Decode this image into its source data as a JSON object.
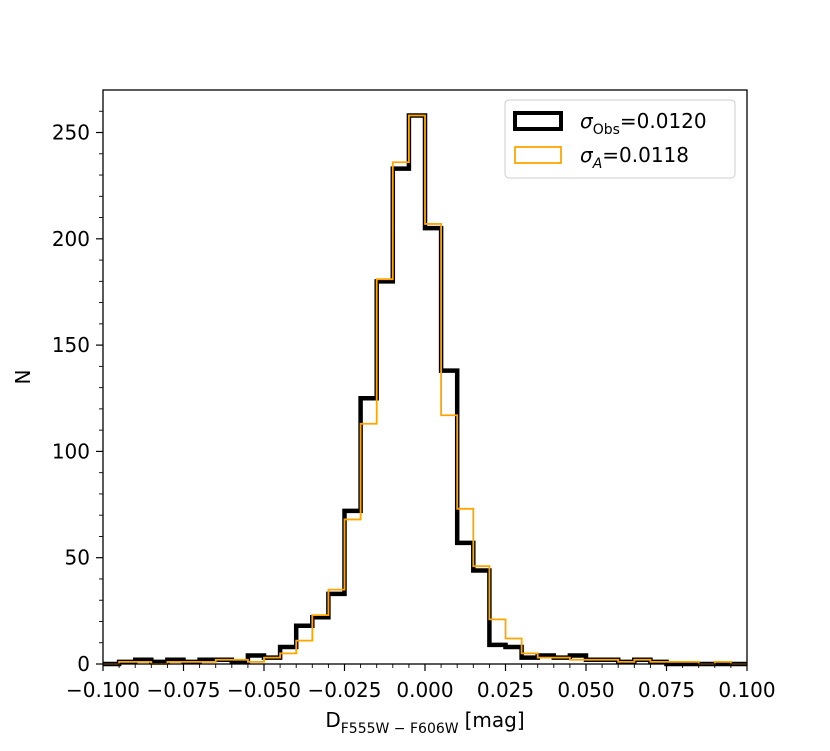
{
  "chart_data": {
    "type": "histogram",
    "xlabel": {
      "main": "D",
      "sub": "F555W − F606W",
      "unit": "[mag]"
    },
    "ylabel": "N",
    "xlim": [
      -0.1,
      0.1
    ],
    "ylim": [
      0,
      270
    ],
    "x_ticks": [
      -0.1,
      -0.075,
      -0.05,
      -0.025,
      0.0,
      0.025,
      0.05,
      0.075,
      0.1
    ],
    "x_tick_labels": [
      "−0.100",
      "−0.075",
      "−0.050",
      "−0.025",
      "0.000",
      "0.025",
      "0.050",
      "0.075",
      "0.100"
    ],
    "y_ticks": [
      0,
      50,
      100,
      150,
      200,
      250
    ],
    "y_tick_labels": [
      "0",
      "50",
      "100",
      "150",
      "200",
      "250"
    ],
    "legend_position": "top-right",
    "series": [
      {
        "name": "σ_Obs=0.0120",
        "legend_symbol": "σ",
        "legend_sub": "Obs",
        "legend_value": "=0.0120",
        "color": "#000000",
        "bin_edges": [
          -0.1,
          -0.095,
          -0.09,
          -0.085,
          -0.08,
          -0.075,
          -0.07,
          -0.065,
          -0.06,
          -0.055,
          -0.05,
          -0.045,
          -0.04,
          -0.035,
          -0.03,
          -0.025,
          -0.02,
          -0.015,
          -0.01,
          -0.005,
          0.0,
          0.005,
          0.01,
          0.015,
          0.02,
          0.025,
          0.03,
          0.035,
          0.04,
          0.045,
          0.05,
          0.055,
          0.06,
          0.065,
          0.07,
          0.075,
          0.08,
          0.085,
          0.09,
          0.095,
          0.1
        ],
        "counts": [
          0,
          1,
          2,
          1,
          2,
          1,
          2,
          2,
          1,
          4,
          3,
          8,
          18,
          22,
          33,
          72,
          125,
          180,
          233,
          258,
          205,
          138,
          57,
          44,
          9,
          8,
          3,
          4,
          3,
          4,
          2,
          2,
          1,
          2,
          1,
          0,
          0,
          0,
          0,
          0
        ]
      },
      {
        "name": "σ_A=0.0118",
        "legend_symbol": "σ",
        "legend_sub": "A",
        "legend_value": "=0.0118",
        "color": "#FFA500",
        "bin_edges": [
          -0.1,
          -0.095,
          -0.09,
          -0.085,
          -0.08,
          -0.075,
          -0.07,
          -0.065,
          -0.06,
          -0.055,
          -0.05,
          -0.045,
          -0.04,
          -0.035,
          -0.03,
          -0.025,
          -0.02,
          -0.015,
          -0.01,
          -0.005,
          0.0,
          0.005,
          0.01,
          0.015,
          0.02,
          0.025,
          0.03,
          0.035,
          0.04,
          0.045,
          0.05,
          0.055,
          0.06,
          0.065,
          0.07,
          0.075,
          0.08,
          0.085,
          0.09,
          0.095,
          0.1
        ],
        "counts": [
          0,
          1,
          1,
          0,
          1,
          1,
          1,
          2,
          2,
          1,
          3,
          5,
          11,
          23,
          35,
          68,
          113,
          181,
          236,
          258,
          207,
          117,
          73,
          46,
          21,
          12,
          5,
          3,
          3,
          2,
          2,
          2,
          1,
          2,
          1,
          1,
          1,
          0,
          1,
          0
        ]
      }
    ]
  }
}
